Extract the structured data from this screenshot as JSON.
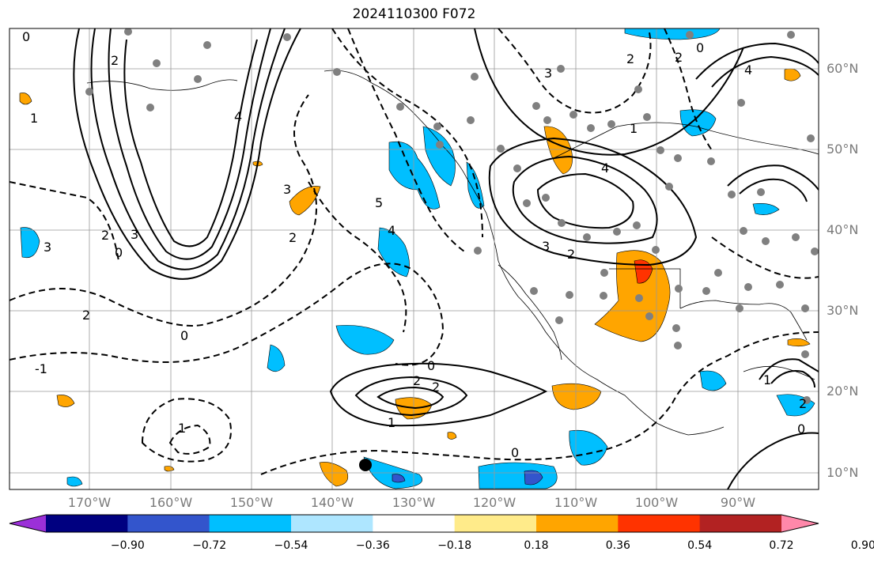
{
  "title": "2024110300 F072",
  "lat_labels": [
    "60°N",
    "50°N",
    "40°N",
    "30°N",
    "20°N",
    "10°N"
  ],
  "lon_labels": [
    "170°W",
    "160°W",
    "150°W",
    "140°W",
    "130°W",
    "120°W",
    "110°W",
    "100°W",
    "90°W"
  ],
  "colorbar": {
    "ticks": [
      "−0.90",
      "−0.72",
      "−0.54",
      "−0.36",
      "−0.18",
      "0.18",
      "0.36",
      "0.54",
      "0.72",
      "0.90"
    ],
    "colors": [
      "#9b30d8",
      "#000080",
      "#3355cc",
      "#00bfff",
      "#aee6ff",
      "#ffffff",
      "#ffeb8a",
      "#ffa500",
      "#ff3300",
      "#b22222",
      "#ff88aa"
    ]
  },
  "contour_labels": [
    "0",
    "2",
    "3",
    "4",
    "5",
    "2",
    "0",
    "-1",
    "1",
    "2",
    "0",
    "3",
    "4",
    "2",
    "1",
    "3",
    "2",
    "3",
    "4",
    "0",
    "2",
    "1",
    "0",
    "2",
    "2",
    "1",
    "2",
    "0",
    "1",
    "3",
    "0",
    "4",
    "2"
  ]
}
